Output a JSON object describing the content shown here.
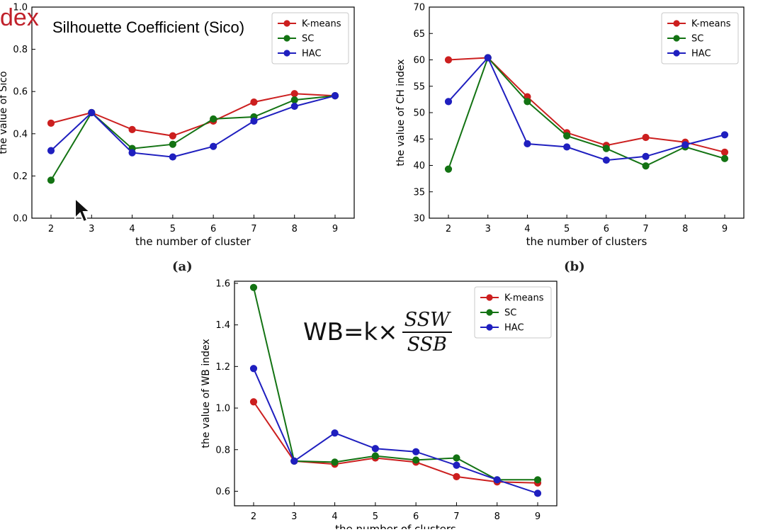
{
  "overlay": {
    "dex": "dex",
    "title": "Silhouette Coefficient (Sico)"
  },
  "formula": {
    "prefix": "WB=k×",
    "numerator": "SSW",
    "denominator": "SSB"
  },
  "series_colors": {
    "K-means": "#cc1f1f",
    "SC": "#137313",
    "HAC": "#1f1fbf"
  },
  "chart_data": [
    {
      "type": "line",
      "panel_label": "(a)",
      "title": "",
      "xlabel": "the number of cluster",
      "ylabel": "the value of Sico",
      "x": [
        2,
        3,
        4,
        5,
        6,
        7,
        8,
        9
      ],
      "xticks": [
        "2",
        "3",
        "4",
        "5",
        "6",
        "7",
        "8",
        "9"
      ],
      "ylim": [
        0.0,
        1.0
      ],
      "yticks": [
        "0.0",
        "0.2",
        "0.4",
        "0.6",
        "0.8",
        "1.0"
      ],
      "legend": "top-right",
      "series": [
        {
          "name": "K-means",
          "values": [
            0.45,
            0.5,
            0.42,
            0.39,
            0.46,
            0.55,
            0.59,
            0.58
          ]
        },
        {
          "name": "SC",
          "values": [
            0.18,
            0.5,
            0.33,
            0.35,
            0.47,
            0.48,
            0.56,
            0.58
          ]
        },
        {
          "name": "HAC",
          "values": [
            0.32,
            0.5,
            0.31,
            0.29,
            0.34,
            0.46,
            0.53,
            0.58
          ]
        }
      ]
    },
    {
      "type": "line",
      "panel_label": "(b)",
      "title": "",
      "xlabel": "the number of clusters",
      "ylabel": "the value of CH index",
      "x": [
        2,
        3,
        4,
        5,
        6,
        7,
        8,
        9
      ],
      "xticks": [
        "2",
        "3",
        "4",
        "5",
        "6",
        "7",
        "8",
        "9"
      ],
      "ylim": [
        30,
        70
      ],
      "yticks": [
        "30",
        "35",
        "40",
        "45",
        "50",
        "55",
        "60",
        "65",
        "70"
      ],
      "legend": "top-right",
      "series": [
        {
          "name": "K-means",
          "values": [
            60.0,
            60.4,
            53.0,
            46.2,
            43.8,
            45.3,
            44.4,
            42.5
          ]
        },
        {
          "name": "SC",
          "values": [
            39.3,
            60.4,
            52.1,
            45.6,
            43.2,
            39.9,
            43.5,
            41.3
          ]
        },
        {
          "name": "HAC",
          "values": [
            52.1,
            60.4,
            44.1,
            43.5,
            41.0,
            41.7,
            43.9,
            45.8
          ]
        }
      ]
    },
    {
      "type": "line",
      "panel_label": "",
      "title": "",
      "xlabel": "the number of clusters",
      "ylabel": "the value of WB index",
      "x": [
        2,
        3,
        4,
        5,
        6,
        7,
        8,
        9
      ],
      "xticks": [
        "2",
        "3",
        "4",
        "5",
        "6",
        "7",
        "8",
        "9"
      ],
      "ylim": [
        0.53,
        1.61
      ],
      "yticks": [
        "0.6",
        "0.8",
        "1.0",
        "1.2",
        "1.4",
        "1.6"
      ],
      "ytick_values": [
        0.6,
        0.8,
        1.0,
        1.2,
        1.4,
        1.6
      ],
      "legend": "top-right",
      "series": [
        {
          "name": "K-means",
          "values": [
            1.03,
            0.745,
            0.73,
            0.76,
            0.74,
            0.67,
            0.645,
            0.64
          ]
        },
        {
          "name": "SC",
          "values": [
            1.58,
            0.745,
            0.74,
            0.77,
            0.75,
            0.76,
            0.655,
            0.655
          ]
        },
        {
          "name": "HAC",
          "values": [
            1.19,
            0.745,
            0.88,
            0.805,
            0.79,
            0.725,
            0.655,
            0.59
          ]
        }
      ]
    }
  ]
}
